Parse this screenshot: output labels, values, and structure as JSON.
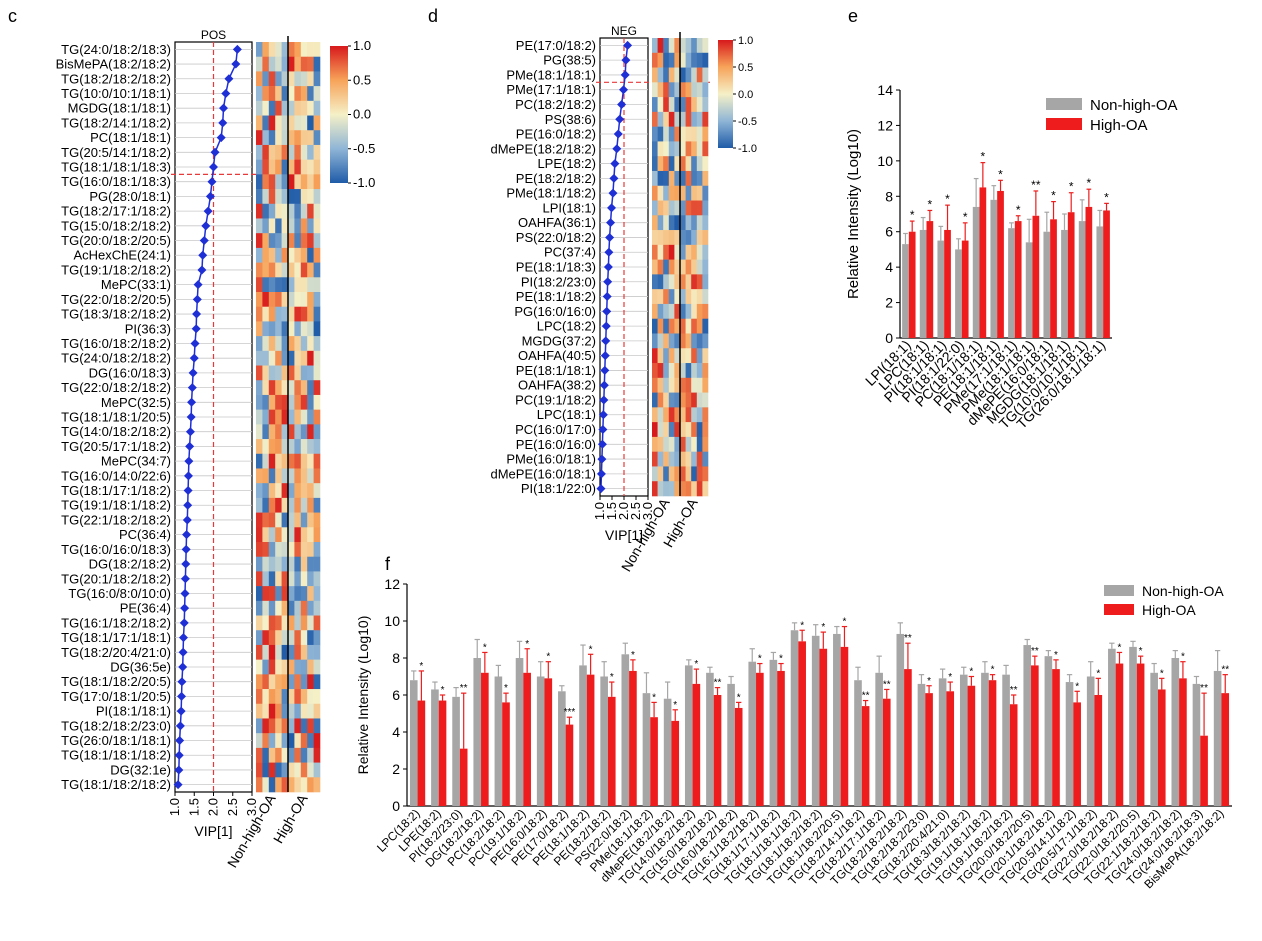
{
  "colors": {
    "marker": "#1f2fd6",
    "vip_line": "#e8393a",
    "non_high_oa": "#a6a6a6",
    "high_oa": "#ee1c1c"
  },
  "chart_data": [
    {
      "panel": "c",
      "type": "scatter",
      "title": "POS",
      "xlabel": "VIP[1]",
      "ticks": [
        "1.0",
        "1.5",
        "2.0",
        "2.5",
        "3.0"
      ],
      "xlim": [
        1.0,
        3.0
      ],
      "threshold": 2.0,
      "heatmap_columns": [
        "Non-high-OA",
        "High-OA"
      ],
      "colorbar": {
        "ticks": [
          "1.0",
          "0.5",
          "0.0",
          "-0.5",
          "-1.0"
        ],
        "range": [
          -1.0,
          1.0
        ]
      },
      "labels": [
        "TG(24:0/18:2/18:3)",
        "BisMePA(18:2/18:2)",
        "TG(18:2/18:2/18:2)",
        "TG(10:0/10:1/18:1)",
        "MGDG(18:1/18:1)",
        "TG(18:2/14:1/18:2)",
        "PC(18:1/18:1)",
        "TG(20:5/14:1/18:2)",
        "TG(18:1/18:1/18:3)",
        "TG(16:0/18:1/18:3)",
        "PG(28:0/18:1)",
        "TG(18:2/17:1/18:2)",
        "TG(15:0/18:2/18:2)",
        "TG(20:0/18:2/20:5)",
        "AcHexChE(24:1)",
        "TG(19:1/18:2/18:2)",
        "MePC(33:1)",
        "TG(22:0/18:2/20:5)",
        "TG(18:3/18:2/18:2)",
        "PI(36:3)",
        "TG(16:0/18:2/18:2)",
        "TG(24:0/18:2/18:2)",
        "DG(16:0/18:3)",
        "TG(22:0/18:2/18:2)",
        "MePC(32:5)",
        "TG(18:1/18:1/20:5)",
        "TG(14:0/18:2/18:2)",
        "TG(20:5/17:1/18:2)",
        "MePC(34:7)",
        "TG(16:0/14:0/22:6)",
        "TG(18:1/17:1/18:2)",
        "TG(19:1/18:1/18:2)",
        "TG(22:1/18:2/18:2)",
        "PC(36:4)",
        "TG(16:0/16:0/18:3)",
        "DG(18:2/18:2)",
        "TG(20:1/18:2/18:2)",
        "TG(16:0/8:0/10:0)",
        "PE(36:4)",
        "TG(16:1/18:2/18:2)",
        "TG(18:1/17:1/18:1)",
        "TG(18:2/20:4/21:0)",
        "DG(36:5e)",
        "TG(18:1/18:2/20:5)",
        "TG(17:0/18:1/20:5)",
        "PI(18:1/18:1)",
        "TG(18:2/18:2/23:0)",
        "TG(26:0/18:1/18:1)",
        "TG(18:1/18:1/18:2)",
        "DG(32:1e)",
        "TG(18:1/18:2/18:2)"
      ],
      "vip": [
        2.62,
        2.58,
        2.4,
        2.32,
        2.26,
        2.24,
        2.2,
        2.04,
        2.0,
        1.96,
        1.92,
        1.86,
        1.8,
        1.76,
        1.72,
        1.7,
        1.6,
        1.58,
        1.56,
        1.55,
        1.52,
        1.5,
        1.47,
        1.45,
        1.43,
        1.42,
        1.4,
        1.38,
        1.36,
        1.35,
        1.34,
        1.33,
        1.32,
        1.3,
        1.29,
        1.28,
        1.27,
        1.26,
        1.25,
        1.24,
        1.22,
        1.21,
        1.2,
        1.18,
        1.17,
        1.16,
        1.14,
        1.12,
        1.11,
        1.1,
        1.08
      ]
    },
    {
      "panel": "d",
      "type": "scatter",
      "title": "NEG",
      "xlabel": "VIP[1]",
      "ticks": [
        "1.0",
        "1.5",
        "2.0",
        "2.5",
        "3.0"
      ],
      "xlim": [
        1.0,
        3.0
      ],
      "threshold": 2.0,
      "heatmap_columns": [
        "Non-high-OA",
        "High-OA"
      ],
      "colorbar": {
        "ticks": [
          "1.0",
          "0.5",
          "0.0",
          "-0.5",
          "-1.0"
        ],
        "range": [
          -1.0,
          1.0
        ]
      },
      "labels": [
        "PE(17:0/18:2)",
        "PG(38:5)",
        "PMe(18:1/18:1)",
        "PMe(17:1/18:1)",
        "PC(18:2/18:2)",
        "PS(38:6)",
        "PE(16:0/18:2)",
        "dMePE(18:2/18:2)",
        "LPE(18:2)",
        "PE(18:2/18:2)",
        "PMe(18:1/18:2)",
        "LPI(18:1)",
        "OAHFA(36:1)",
        "PS(22:0/18:2)",
        "PC(37:4)",
        "PE(18:1/18:3)",
        "PI(18:2/23:0)",
        "PE(18:1/18:2)",
        "PG(16:0/16:0)",
        "LPC(18:2)",
        "MGDG(37:2)",
        "OAHFA(40:5)",
        "PE(18:1/18:1)",
        "OAHFA(38:2)",
        "PC(19:1/18:2)",
        "LPC(18:1)",
        "PC(16:0/17:0)",
        "PE(16:0/16:0)",
        "PMe(16:0/18:1)",
        "dMePE(16:0/18:1)",
        "PI(18:1/22:0)"
      ],
      "vip": [
        2.15,
        2.08,
        2.05,
        1.98,
        1.9,
        1.82,
        1.76,
        1.7,
        1.62,
        1.58,
        1.54,
        1.48,
        1.44,
        1.4,
        1.37,
        1.35,
        1.32,
        1.3,
        1.28,
        1.26,
        1.24,
        1.22,
        1.2,
        1.18,
        1.16,
        1.14,
        1.12,
        1.1,
        1.08,
        1.06,
        1.04
      ]
    },
    {
      "panel": "e",
      "type": "bar",
      "ylabel": "Relative Intensity (Log10)",
      "ylim": [
        0,
        14
      ],
      "yticks": [
        "0",
        "2",
        "4",
        "6",
        "8",
        "10",
        "12",
        "14"
      ],
      "legend_position": "top-right",
      "categories": [
        "LPI(18:1)",
        "LPC(18:1)",
        "PI(18:1/18:1)",
        "PI(18:1/22:0)",
        "PC(18:1/18:1)",
        "PE(18:1/18:1)",
        "PMe(17:1/18:1)",
        "PMe(18:1/18:1)",
        "dMePE(16:0/18:1)",
        "MGDG(18:1/18:1)",
        "TG(10:0/10:1/18:1)",
        "TG(26:0/18:1/18:1)"
      ],
      "series": [
        {
          "name": "Non-high-OA",
          "values": [
            5.3,
            6.1,
            5.5,
            5.0,
            7.4,
            7.8,
            6.2,
            5.4,
            6.0,
            6.1,
            6.6,
            6.3
          ],
          "errors": [
            0.6,
            0.7,
            0.8,
            0.6,
            1.6,
            0.8,
            0.3,
            1.3,
            1.1,
            0.9,
            1.2,
            0.9
          ]
        },
        {
          "name": "High-OA",
          "values": [
            6.0,
            6.6,
            6.1,
            5.5,
            8.5,
            8.3,
            6.6,
            6.9,
            6.7,
            7.1,
            7.4,
            7.2
          ],
          "errors": [
            0.6,
            0.6,
            1.4,
            1.0,
            1.4,
            0.6,
            0.3,
            1.4,
            1.0,
            1.1,
            1.0,
            0.4
          ]
        }
      ],
      "significance": [
        "*",
        "*",
        "*",
        "*",
        "*",
        "*",
        "*",
        "**",
        "*",
        "*",
        "*",
        "*"
      ]
    },
    {
      "panel": "f",
      "type": "bar",
      "ylabel": "Relative Intensity (Log10)",
      "ylim": [
        0,
        12
      ],
      "yticks": [
        "0",
        "2",
        "4",
        "6",
        "8",
        "10",
        "12"
      ],
      "legend_position": "top-right",
      "categories": [
        "LPC(18:2)",
        "LPE(18:2)",
        "PI(18:2/23:0)",
        "DG(18:2/18:2)",
        "PC(18:2/18:2)",
        "PC(19:1/18:2)",
        "PE(16:0/18:2)",
        "PE(17:0/18:2)",
        "PE(18:1/18:2)",
        "PE(18:2/18:2)",
        "PS(22:0/18:2)",
        "PMe(18:1/18:2)",
        "dMePE(18:2/18:2)",
        "TG(14:0/18:2/18:2)",
        "TG(15:0/18:2/18:2)",
        "TG(16:0/18:2/18:2)",
        "TG(16:1/18:2/18:2)",
        "TG(18:1/17:1/18:2)",
        "TG(18:1/18:1/18:2)",
        "TG(18:1/18:2/18:2)",
        "TG(18:1/18:2/20:5)",
        "TG(18:2/14:1/18:2)",
        "TG(18:2/17:1/18:2)",
        "TG(18:2/18:2/18:2)",
        "TG(18:2/18:2/23:0)",
        "TG(18:2/20:4/21:0)",
        "TG(18:3/18:2/18:2)",
        "TG(19:1/18:1/18:2)",
        "TG(19:1/18:2/18:2)",
        "TG(20:0/18:2/20:5)",
        "TG(20:1/18:2/18:2)",
        "TG(20:5/14:1/18:2)",
        "TG(20:5/17:1/18:2)",
        "TG(22:0/18:2/18:2)",
        "TG(22:0/18:2/20:5)",
        "TG(22:1/18:2/18:2)",
        "TG(24:0/18:2/18:2)",
        "TG(24:0/18:2/18:3)",
        "BisMePA(18:2/18:2)"
      ],
      "series": [
        {
          "name": "Non-high-OA",
          "values": [
            6.8,
            6.3,
            5.9,
            8.0,
            7.0,
            8.0,
            7.0,
            6.2,
            7.6,
            7.0,
            8.2,
            6.1,
            5.8,
            7.6,
            7.2,
            6.6,
            7.8,
            7.9,
            9.5,
            9.2,
            9.3,
            6.8,
            7.2,
            9.3,
            6.6,
            6.9,
            7.1,
            7.2,
            7.1,
            8.7,
            8.1,
            6.7,
            7.0,
            8.5,
            8.6,
            7.2,
            8.0,
            6.6,
            7.3
          ],
          "errors": [
            0.5,
            0.4,
            0.5,
            1.0,
            0.6,
            0.9,
            0.8,
            0.3,
            1.1,
            0.8,
            0.6,
            1.1,
            0.9,
            0.3,
            0.3,
            0.4,
            0.7,
            0.4,
            0.4,
            0.6,
            0.4,
            0.7,
            0.9,
            0.6,
            0.5,
            0.5,
            0.4,
            0.6,
            0.5,
            0.3,
            0.3,
            0.4,
            0.8,
            0.3,
            0.3,
            0.5,
            0.4,
            0.4,
            1.1
          ]
        },
        {
          "name": "High-OA",
          "values": [
            5.7,
            5.7,
            3.1,
            7.2,
            5.6,
            7.2,
            6.9,
            4.4,
            7.1,
            5.9,
            7.3,
            4.8,
            4.6,
            6.6,
            6.0,
            5.3,
            7.2,
            7.3,
            8.9,
            8.5,
            8.6,
            5.4,
            5.8,
            7.4,
            6.1,
            6.2,
            6.5,
            6.8,
            5.5,
            7.6,
            7.4,
            5.6,
            6.0,
            7.7,
            7.7,
            6.3,
            6.9,
            3.8,
            6.1
          ],
          "errors": [
            1.6,
            0.3,
            3.0,
            1.1,
            0.5,
            1.3,
            0.9,
            0.4,
            1.1,
            0.8,
            0.6,
            0.8,
            0.6,
            0.8,
            0.4,
            0.3,
            0.5,
            0.4,
            0.6,
            0.9,
            1.1,
            0.3,
            0.5,
            1.4,
            0.4,
            0.5,
            0.5,
            0.3,
            0.5,
            0.5,
            0.5,
            0.6,
            0.9,
            0.6,
            0.4,
            0.6,
            0.9,
            2.3,
            1.0
          ]
        }
      ],
      "significance": [
        "*",
        "*",
        "**",
        "*",
        "*",
        "*",
        "*",
        "***",
        "*",
        "*",
        "*",
        "*",
        "*",
        "*",
        "**",
        "*",
        "*",
        "*",
        "*",
        "*",
        "*",
        "**",
        "**",
        "**",
        "*",
        "*",
        "*",
        "*",
        "**",
        "**",
        "*",
        "*",
        "*",
        "*",
        "*",
        "*",
        "*",
        "**",
        "**"
      ]
    }
  ]
}
